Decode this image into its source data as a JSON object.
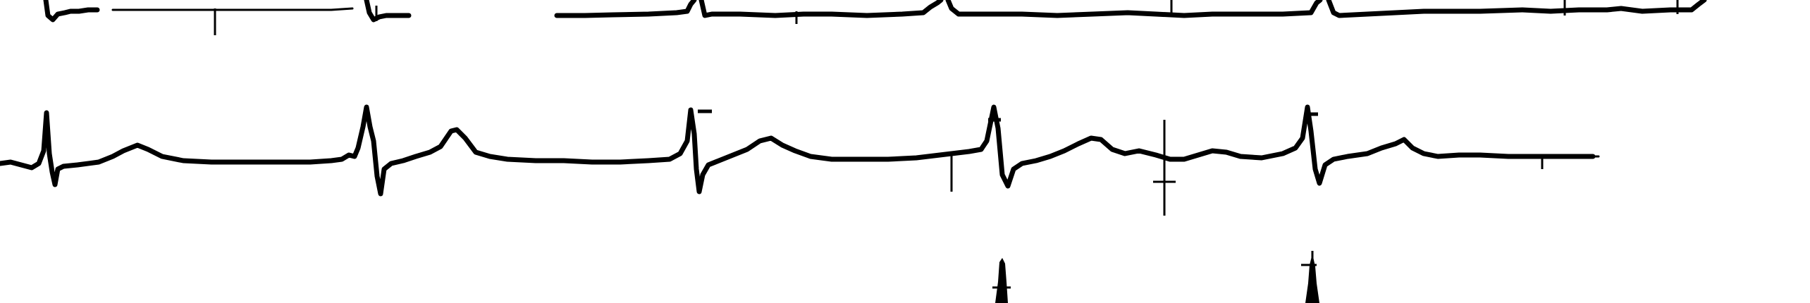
{
  "background": "#ffffff",
  "trace_color": "#000000",
  "leads": [
    {
      "id": "row-1"
    },
    {
      "id": "row-2"
    },
    {
      "id": "row-3"
    }
  ]
}
